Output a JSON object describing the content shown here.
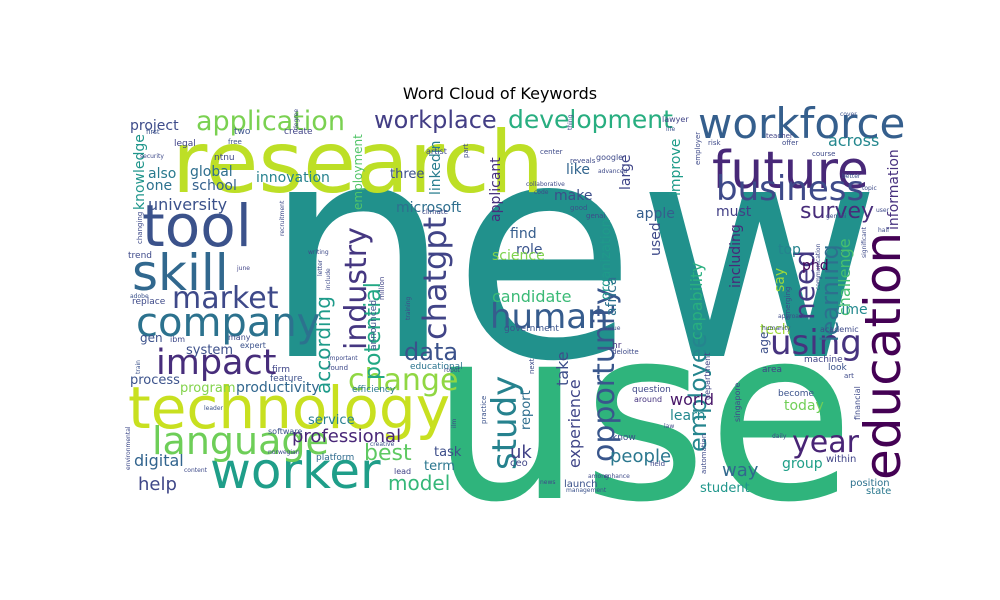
{
  "title": "Word Cloud of Keywords",
  "chart_data": {
    "type": "wordcloud",
    "title": "Word Cloud of Keywords",
    "background": "#ffffff",
    "colormap": "viridis",
    "words": [
      {
        "text": "new",
        "weight": 1.0,
        "color": "#21918c"
      },
      {
        "text": "use",
        "weight": 0.8,
        "color": "#2fb47c"
      },
      {
        "text": "research",
        "weight": 0.55,
        "color": "#bddf26"
      },
      {
        "text": "technology",
        "weight": 0.38,
        "color": "#c8e020"
      },
      {
        "text": "tool",
        "weight": 0.33,
        "color": "#3b528b"
      },
      {
        "text": "skill",
        "weight": 0.3,
        "color": "#31688e"
      },
      {
        "text": "future",
        "weight": 0.3,
        "color": "#482878"
      },
      {
        "text": "worker",
        "weight": 0.29,
        "color": "#1f9e89"
      },
      {
        "text": "education",
        "weight": 0.29,
        "color": "#440154"
      },
      {
        "text": "workforce",
        "weight": 0.26,
        "color": "#355f8d"
      },
      {
        "text": "company",
        "weight": 0.24,
        "color": "#2c728e"
      },
      {
        "text": "language",
        "weight": 0.24,
        "color": "#6ece58"
      },
      {
        "text": "business",
        "weight": 0.21,
        "color": "#3e4a89"
      },
      {
        "text": "impact",
        "weight": 0.21,
        "color": "#472d7b"
      },
      {
        "text": "study",
        "weight": 0.2,
        "color": "#26828e"
      },
      {
        "text": "using",
        "weight": 0.2,
        "color": "#46337f"
      },
      {
        "text": "human",
        "weight": 0.2,
        "color": "#365c8d"
      },
      {
        "text": "year",
        "weight": 0.2,
        "color": "#482475"
      },
      {
        "text": "market",
        "weight": 0.19,
        "color": "#3e4989"
      },
      {
        "text": "chatgpt",
        "weight": 0.19,
        "color": "#414487"
      },
      {
        "text": "change",
        "weight": 0.18,
        "color": "#90d743"
      },
      {
        "text": "industry",
        "weight": 0.18,
        "color": "#453781"
      },
      {
        "text": "opportunity",
        "weight": 0.18,
        "color": "#39568c"
      },
      {
        "text": "need",
        "weight": 0.18,
        "color": "#443983"
      },
      {
        "text": "application",
        "weight": 0.17,
        "color": "#7ad151"
      },
      {
        "text": "development",
        "weight": 0.16,
        "color": "#28ae80"
      },
      {
        "text": "workplace",
        "weight": 0.15,
        "color": "#433e85"
      },
      {
        "text": "learning",
        "weight": 0.15,
        "color": "#2d708e"
      },
      {
        "text": "data",
        "weight": 0.15,
        "color": "#3b528b"
      },
      {
        "text": "survey",
        "weight": 0.14,
        "color": "#472c7a"
      },
      {
        "text": "employee",
        "weight": 0.14,
        "color": "#25858e"
      },
      {
        "text": "potential",
        "weight": 0.14,
        "color": "#22a884"
      },
      {
        "text": "best",
        "weight": 0.13,
        "color": "#5ec962"
      },
      {
        "text": "according",
        "weight": 0.13,
        "color": "#1e9b8a"
      },
      {
        "text": "model",
        "weight": 0.13,
        "color": "#35b779"
      },
      {
        "text": "professional",
        "weight": 0.11,
        "color": "#482677"
      },
      {
        "text": "help",
        "weight": 0.11,
        "color": "#3f4788"
      },
      {
        "text": "people",
        "weight": 0.11,
        "color": "#2a778e"
      },
      {
        "text": "experience",
        "weight": 0.1,
        "color": "#404688"
      },
      {
        "text": "take",
        "weight": 0.1,
        "color": "#3d4e8a"
      },
      {
        "text": "uk",
        "weight": 0.1,
        "color": "#414287"
      },
      {
        "text": "challenge",
        "weight": 0.1,
        "color": "#46c06f"
      },
      {
        "text": "capability",
        "weight": 0.1,
        "color": "#29af7f"
      },
      {
        "text": "way",
        "weight": 0.1,
        "color": "#31688e"
      },
      {
        "text": "world",
        "weight": 0.1,
        "color": "#481769"
      },
      {
        "text": "digital",
        "weight": 0.1,
        "color": "#32648e"
      },
      {
        "text": "candidate",
        "weight": 0.09,
        "color": "#3aba76"
      },
      {
        "text": "university",
        "weight": 0.09,
        "color": "#3b518b"
      },
      {
        "text": "school",
        "weight": 0.09,
        "color": "#34608d"
      },
      {
        "text": "innovation",
        "weight": 0.09,
        "color": "#26828e"
      },
      {
        "text": "employment",
        "weight": 0.09,
        "color": "#52c569"
      },
      {
        "text": "knowledge",
        "weight": 0.09,
        "color": "#1f958b"
      },
      {
        "text": "global",
        "weight": 0.09,
        "color": "#2e6e8e"
      },
      {
        "text": "also",
        "weight": 0.09,
        "color": "#297a8e"
      },
      {
        "text": "one",
        "weight": 0.09,
        "color": "#2c718e"
      },
      {
        "text": "project",
        "weight": 0.09,
        "color": "#3e4c8a"
      },
      {
        "text": "applicant",
        "weight": 0.09,
        "color": "#472f7d"
      },
      {
        "text": "linkedin",
        "weight": 0.09,
        "color": "#287d8e"
      },
      {
        "text": "three",
        "weight": 0.08,
        "color": "#3c4f8a"
      },
      {
        "text": "microsoft",
        "weight": 0.09,
        "color": "#2e6f8e"
      },
      {
        "text": "like",
        "weight": 0.09,
        "color": "#32658e"
      },
      {
        "text": "make",
        "weight": 0.09,
        "color": "#3d4d8a"
      },
      {
        "text": "large",
        "weight": 0.09,
        "color": "#404588"
      },
      {
        "text": "improve",
        "weight": 0.09,
        "color": "#1e9c89"
      },
      {
        "text": "apple",
        "weight": 0.09,
        "color": "#355e8d"
      },
      {
        "text": "must",
        "weight": 0.09,
        "color": "#423f85"
      },
      {
        "text": "find",
        "weight": 0.09,
        "color": "#365d8d"
      },
      {
        "text": "role",
        "weight": 0.09,
        "color": "#3a548c"
      },
      {
        "text": "science",
        "weight": 0.09,
        "color": "#7fd34e"
      },
      {
        "text": "organization",
        "weight": 0.09,
        "color": "#1f9a8a"
      },
      {
        "text": "across",
        "weight": 0.09,
        "color": "#24878e"
      },
      {
        "text": "information",
        "weight": 0.09,
        "color": "#46307e"
      },
      {
        "text": "africa",
        "weight": 0.08,
        "color": "#2d718e"
      },
      {
        "text": "including",
        "weight": 0.09,
        "color": "#482979"
      },
      {
        "text": "top",
        "weight": 0.09,
        "color": "#25838e"
      },
      {
        "text": "phd",
        "weight": 0.09,
        "color": "#450559"
      },
      {
        "text": "say",
        "weight": 0.09,
        "color": "#9dd93b"
      },
      {
        "text": "tech",
        "weight": 0.09,
        "color": "#a0da39"
      },
      {
        "text": "time",
        "weight": 0.09,
        "color": "#23898e"
      },
      {
        "text": "used",
        "weight": 0.09,
        "color": "#3e4a89"
      },
      {
        "text": "age",
        "weight": 0.08,
        "color": "#3c4f8a"
      },
      {
        "text": "gen",
        "weight": 0.08,
        "color": "#3b518b"
      },
      {
        "text": "process",
        "weight": 0.09,
        "color": "#3b528b"
      },
      {
        "text": "program",
        "weight": 0.09,
        "color": "#83d34b"
      },
      {
        "text": "productivity",
        "weight": 0.09,
        "color": "#31678e"
      },
      {
        "text": "service",
        "weight": 0.09,
        "color": "#277f8e"
      },
      {
        "text": "system",
        "weight": 0.08,
        "color": "#3c4f8a"
      },
      {
        "text": "report",
        "weight": 0.08,
        "color": "#2e6e8e"
      },
      {
        "text": "learn",
        "weight": 0.09,
        "color": "#23888e"
      },
      {
        "text": "today",
        "weight": 0.09,
        "color": "#70cf57"
      },
      {
        "text": "group",
        "weight": 0.09,
        "color": "#1f9f88"
      },
      {
        "text": "student",
        "weight": 0.09,
        "color": "#1f968b"
      },
      {
        "text": "term",
        "weight": 0.09,
        "color": "#2a768e"
      },
      {
        "text": "task",
        "weight": 0.09,
        "color": "#3d4e8a"
      },
      {
        "text": "government",
        "weight": 0.06,
        "color": "#3a538b"
      },
      {
        "text": "within",
        "weight": 0.07,
        "color": "#404588"
      },
      {
        "text": "position",
        "weight": 0.07,
        "color": "#2c718e"
      },
      {
        "text": "state",
        "weight": 0.07,
        "color": "#2a788e"
      },
      {
        "text": "launch",
        "weight": 0.07,
        "color": "#3b528b"
      },
      {
        "text": "ceo",
        "weight": 0.07,
        "color": "#404688"
      },
      {
        "text": "firm",
        "weight": 0.06,
        "color": "#404688"
      },
      {
        "text": "feature",
        "weight": 0.06,
        "color": "#3c4f8a"
      },
      {
        "text": "platform",
        "weight": 0.06,
        "color": "#2f6b8e"
      },
      {
        "text": "efficiency",
        "weight": 0.06,
        "color": "#2a788e"
      },
      {
        "text": "educational",
        "weight": 0.06,
        "color": "#2b748e"
      },
      {
        "text": "announced",
        "weight": 0.06,
        "color": "#3b528b"
      },
      {
        "text": "ntnu",
        "weight": 0.06,
        "color": "#3f4889"
      },
      {
        "text": "hr",
        "weight": 0.06,
        "color": "#46337e"
      },
      {
        "text": "deloitte",
        "weight": 0.05,
        "color": "#3e4a89"
      },
      {
        "text": "question",
        "weight": 0.06,
        "color": "#3f4889"
      },
      {
        "text": "around",
        "weight": 0.06,
        "color": "#46337f"
      },
      {
        "text": "know",
        "weight": 0.06,
        "color": "#3b528b"
      },
      {
        "text": "department",
        "weight": 0.05,
        "color": "#414487"
      },
      {
        "text": "automation",
        "weight": 0.05,
        "color": "#3e4a89"
      },
      {
        "text": "singapore",
        "weight": 0.05,
        "color": "#3e4a89"
      },
      {
        "text": "machine",
        "weight": 0.06,
        "color": "#414487"
      },
      {
        "text": "look",
        "weight": 0.06,
        "color": "#3b528b"
      },
      {
        "text": "area",
        "weight": 0.06,
        "color": "#414487"
      },
      {
        "text": "academic",
        "weight": 0.06,
        "color": "#3e4a89"
      },
      {
        "text": "become",
        "weight": 0.06,
        "color": "#3b528b"
      },
      {
        "text": "financial",
        "weight": 0.05,
        "color": "#3e4a89"
      },
      {
        "text": "art",
        "weight": 0.05,
        "color": "#3e4a89"
      },
      {
        "text": "emerging",
        "weight": 0.05,
        "color": "#3e4a89"
      },
      {
        "text": "approach",
        "weight": 0.04,
        "color": "#3e4a89"
      },
      {
        "text": "trend",
        "weight": 0.06,
        "color": "#3e4a89"
      },
      {
        "text": "replace",
        "weight": 0.06,
        "color": "#3e4a89"
      },
      {
        "text": "legal",
        "weight": 0.06,
        "color": "#414487"
      },
      {
        "text": "two",
        "weight": 0.06,
        "color": "#3b528b"
      },
      {
        "text": "create",
        "weight": 0.06,
        "color": "#414487"
      },
      {
        "text": "first",
        "weight": 0.05,
        "color": "#3b528b"
      },
      {
        "text": "free",
        "weight": 0.05,
        "color": "#3b528b"
      },
      {
        "text": "security",
        "weight": 0.04,
        "color": "#3e4a89"
      },
      {
        "text": "artist",
        "weight": 0.06,
        "color": "#3e4a89"
      },
      {
        "text": "part",
        "weight": 0.05,
        "color": "#3e4a89"
      },
      {
        "text": "lawyer",
        "weight": 0.06,
        "color": "#414487"
      },
      {
        "text": "life",
        "weight": 0.05,
        "color": "#3b528b"
      },
      {
        "text": "risk",
        "weight": 0.05,
        "color": "#3e4a89"
      },
      {
        "text": "offer",
        "weight": 0.05,
        "color": "#3e4a89"
      },
      {
        "text": "teacher",
        "weight": 0.05,
        "color": "#414487"
      },
      {
        "text": "course",
        "weight": 0.05,
        "color": "#3e4a89"
      },
      {
        "text": "cover",
        "weight": 0.04,
        "color": "#3b528b"
      },
      {
        "text": "google",
        "weight": 0.05,
        "color": "#3e4a89"
      },
      {
        "text": "center",
        "weight": 0.05,
        "color": "#3e4a89"
      },
      {
        "text": "reveals",
        "weight": 0.05,
        "color": "#3e4a89"
      },
      {
        "text": "advanced",
        "weight": 0.04,
        "color": "#3e4a89"
      },
      {
        "text": "employer",
        "weight": 0.05,
        "color": "#3e4a89"
      },
      {
        "text": "topic",
        "weight": 0.04,
        "color": "#3e4a89"
      },
      {
        "text": "better",
        "weight": 0.04,
        "color": "#3b528b"
      },
      {
        "text": "collaborative",
        "weight": 0.05,
        "color": "#3e4a89"
      },
      {
        "text": "code",
        "weight": 0.04,
        "color": "#3e4a89"
      },
      {
        "text": "good",
        "weight": 0.05,
        "color": "#3b528b"
      },
      {
        "text": "genai",
        "weight": 0.05,
        "color": "#3e4a89"
      },
      {
        "text": "climate",
        "weight": 0.05,
        "color": "#3e4a89"
      },
      {
        "text": "million",
        "weight": 0.05,
        "color": "#414487"
      },
      {
        "text": "include",
        "weight": 0.04,
        "color": "#3e4a89"
      },
      {
        "text": "letter",
        "weight": 0.04,
        "color": "#3e4a89"
      },
      {
        "text": "writing",
        "weight": 0.04,
        "color": "#3e4a89"
      },
      {
        "text": "june",
        "weight": 0.04,
        "color": "#414487"
      },
      {
        "text": "adobe",
        "weight": 0.04,
        "color": "#3b528b"
      },
      {
        "text": "ibm",
        "weight": 0.04,
        "color": "#3e4a89"
      },
      {
        "text": "many",
        "weight": 0.05,
        "color": "#3e4a89"
      },
      {
        "text": "expert",
        "weight": 0.05,
        "color": "#3b528b"
      },
      {
        "text": "train",
        "weight": 0.04,
        "color": "#3b528b"
      },
      {
        "text": "important",
        "weight": 0.04,
        "color": "#3e4a89"
      },
      {
        "text": "found",
        "weight": 0.04,
        "color": "#3e4a89"
      },
      {
        "text": "robot",
        "weight": 0.04,
        "color": "#3e4a89"
      },
      {
        "text": "value",
        "weight": 0.04,
        "color": "#3e4a89"
      },
      {
        "text": "next",
        "weight": 0.05,
        "color": "#3e4a89"
      },
      {
        "text": "practice",
        "weight": 0.04,
        "color": "#3b528b"
      },
      {
        "text": "ilm",
        "weight": 0.04,
        "color": "#3e4a89"
      },
      {
        "text": "software",
        "weight": 0.05,
        "color": "#3b528b"
      },
      {
        "text": "creative",
        "weight": 0.04,
        "color": "#3b528b"
      },
      {
        "text": "norwegian",
        "weight": 0.04,
        "color": "#3e4a89"
      },
      {
        "text": "content",
        "weight": 0.04,
        "color": "#3e4a89"
      },
      {
        "text": "leader",
        "weight": 0.04,
        "color": "#3b528b"
      },
      {
        "text": "environmental",
        "weight": 0.04,
        "color": "#3e4a89"
      },
      {
        "text": "lead",
        "weight": 0.05,
        "color": "#414487"
      },
      {
        "text": "management",
        "weight": 0.04,
        "color": "#3b528b"
      },
      {
        "text": "field",
        "weight": 0.04,
        "color": "#3e4a89"
      },
      {
        "text": "daily",
        "weight": 0.04,
        "color": "#3e4a89"
      },
      {
        "text": "humanity",
        "weight": 0.04,
        "color": "#3e4a89"
      },
      {
        "text": "recruitment",
        "weight": 0.04,
        "color": "#3e4a89"
      },
      {
        "text": "changing",
        "weight": 0.04,
        "color": "#3e4a89"
      },
      {
        "text": "half",
        "weight": 0.04,
        "color": "#3e4a89"
      },
      {
        "text": "user",
        "weight": 0.04,
        "color": "#3e4a89"
      },
      {
        "text": "significant",
        "weight": 0.04,
        "color": "#3e4a89"
      },
      {
        "text": "gemini",
        "weight": 0.04,
        "color": "#3e4a89"
      },
      {
        "text": "communication",
        "weight": 0.04,
        "color": "#3e4a89"
      },
      {
        "text": "thing",
        "weight": 0.04,
        "color": "#3e4a89"
      },
      {
        "text": "degree",
        "weight": 0.04,
        "color": "#3e4a89"
      },
      {
        "text": "news",
        "weight": 0.04,
        "color": "#3e4a89"
      },
      {
        "text": "among",
        "weight": 0.04,
        "color": "#3e4a89"
      },
      {
        "text": "enhance",
        "weight": 0.04,
        "color": "#3e4a89"
      },
      {
        "text": "law",
        "weight": 0.04,
        "color": "#3e4a89"
      },
      {
        "text": "training",
        "weight": 0.04,
        "color": "#3e4a89"
      }
    ]
  }
}
